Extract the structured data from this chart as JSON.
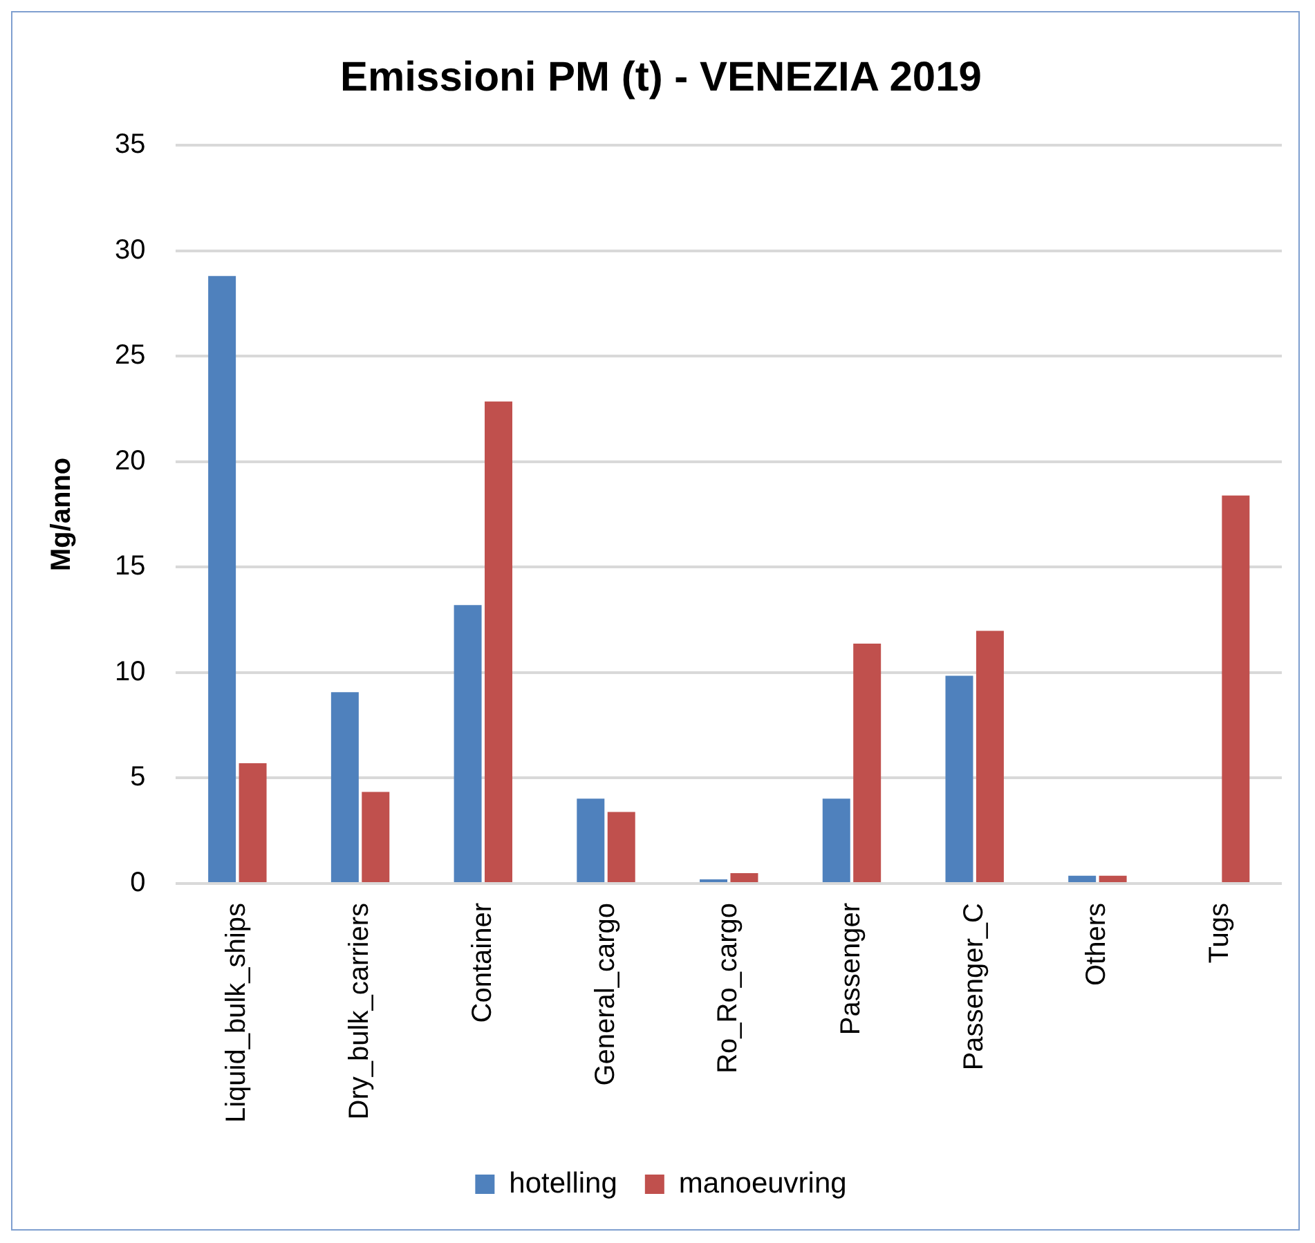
{
  "chart_data": {
    "type": "bar",
    "title": "Emissioni PM (t) - VENEZIA 2019",
    "ylabel": "Mg/anno",
    "categories": [
      "Liquid_bulk_ships",
      "Dry_bulk_carriers",
      "Container",
      "General_cargo",
      "Ro_Ro_cargo",
      "Passenger",
      "Passenger_C",
      "Others",
      "Tugs"
    ],
    "series": [
      {
        "name": "hotelling",
        "color": "#4f81bd",
        "values": [
          28.8,
          9.07,
          13.2,
          4.02,
          0.2,
          4.02,
          9.85,
          0.37,
          0
        ]
      },
      {
        "name": "manoeuvring",
        "color": "#c0504d",
        "values": [
          5.7,
          4.34,
          22.85,
          3.39,
          0.49,
          11.37,
          11.98,
          0.37,
          18.39
        ]
      }
    ],
    "ylim": [
      0,
      35
    ],
    "yticks": [
      0,
      5,
      10,
      15,
      20,
      25,
      30,
      35
    ],
    "grid": "y",
    "legend": "bottom"
  }
}
